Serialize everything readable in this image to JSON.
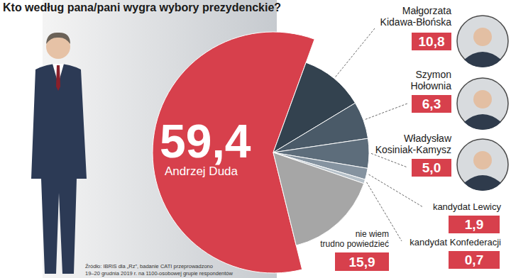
{
  "chart_data": {
    "type": "pie",
    "title": "Kto według pana/pani wygra wybory prezydenckie?",
    "categories": [
      "Andrzej Duda",
      "Małgorzata Kidawa-Błońska",
      "Szymon Hołownia",
      "Władysław Kosiniak-Kamysz",
      "kandydat Lewicy",
      "kandydat Konfederacji",
      "nie wiem trudno powiedzieć"
    ],
    "values": [
      59.4,
      10.8,
      6.3,
      5.0,
      1.9,
      0.7,
      15.9
    ],
    "value_labels": [
      "59,4",
      "10,8",
      "6,3",
      "5,0",
      "1,9",
      "0,7",
      "15,9"
    ],
    "colors": [
      "#d7404c",
      "#33424f",
      "#4a5a68",
      "#5d6d7b",
      "#8593a0",
      "#b7c1c9",
      "#a6a6a6"
    ],
    "data_labels": true,
    "source": [
      "Źródło: IBRiS dla „Rz”, badanie CATI przeprowadzono",
      "19–20 grudnia 2019 r. na 1100-osobowej grupie respondentów"
    ]
  }
}
